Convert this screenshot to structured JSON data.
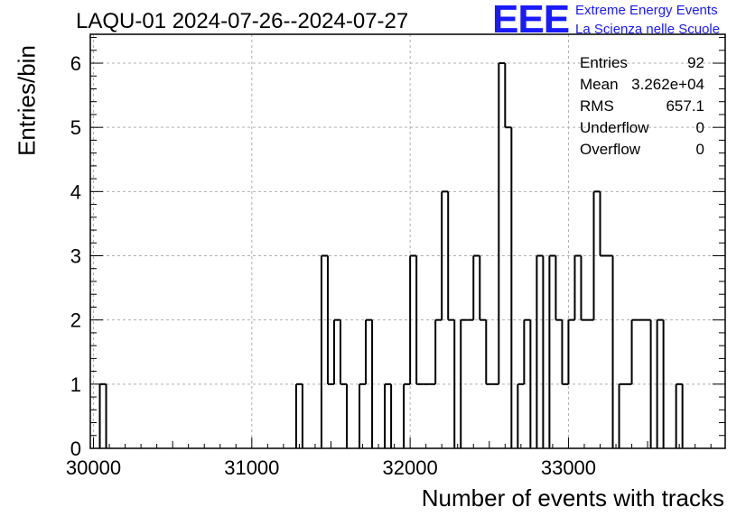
{
  "title": "LAQU-01 2024-07-26--2024-07-27",
  "logo": {
    "mark": "EEE",
    "line1": "Extreme Energy Events",
    "line2": "La Scienza nelle Scuole"
  },
  "stats": [
    {
      "label": "Entries",
      "value": "92"
    },
    {
      "label": "Mean",
      "value": "3.262e+04"
    },
    {
      "label": "RMS",
      "value": "657.1"
    },
    {
      "label": "Underflow",
      "value": "0"
    },
    {
      "label": "Overflow",
      "value": "0"
    }
  ],
  "colors": {
    "histogram_line": "#000000",
    "grid": "#b0b0b0",
    "logo": "#1a1aff"
  },
  "chart_data": {
    "type": "histogram",
    "xlabel": "Number of events with tracks",
    "ylabel": "Entries/bin",
    "xlim": [
      29980,
      33990
    ],
    "ylim": [
      0,
      6.45
    ],
    "bin_width": 40,
    "x_ticks": [
      30000,
      31000,
      32000,
      33000
    ],
    "y_ticks": [
      0,
      1,
      2,
      3,
      4,
      5,
      6
    ],
    "grid": true,
    "bins": [
      {
        "x": 30000,
        "y": 0
      },
      {
        "x": 30040,
        "y": 1
      },
      {
        "x": 30080,
        "y": 0
      },
      {
        "x": 31280,
        "y": 1
      },
      {
        "x": 31320,
        "y": 0
      },
      {
        "x": 31440,
        "y": 3
      },
      {
        "x": 31480,
        "y": 1
      },
      {
        "x": 31520,
        "y": 2
      },
      {
        "x": 31560,
        "y": 1
      },
      {
        "x": 31600,
        "y": 0
      },
      {
        "x": 31680,
        "y": 1
      },
      {
        "x": 31720,
        "y": 2
      },
      {
        "x": 31760,
        "y": 0
      },
      {
        "x": 31840,
        "y": 1
      },
      {
        "x": 31880,
        "y": 0
      },
      {
        "x": 31960,
        "y": 1
      },
      {
        "x": 32000,
        "y": 3
      },
      {
        "x": 32040,
        "y": 1
      },
      {
        "x": 32080,
        "y": 1
      },
      {
        "x": 32120,
        "y": 1
      },
      {
        "x": 32160,
        "y": 2
      },
      {
        "x": 32200,
        "y": 4
      },
      {
        "x": 32240,
        "y": 2
      },
      {
        "x": 32280,
        "y": 0
      },
      {
        "x": 32320,
        "y": 2
      },
      {
        "x": 32360,
        "y": 2
      },
      {
        "x": 32400,
        "y": 3
      },
      {
        "x": 32440,
        "y": 2
      },
      {
        "x": 32480,
        "y": 1
      },
      {
        "x": 32520,
        "y": 1
      },
      {
        "x": 32560,
        "y": 6
      },
      {
        "x": 32600,
        "y": 5
      },
      {
        "x": 32640,
        "y": 0
      },
      {
        "x": 32680,
        "y": 1
      },
      {
        "x": 32720,
        "y": 2
      },
      {
        "x": 32760,
        "y": 0
      },
      {
        "x": 32800,
        "y": 3
      },
      {
        "x": 32840,
        "y": 0
      },
      {
        "x": 32880,
        "y": 3
      },
      {
        "x": 32920,
        "y": 2
      },
      {
        "x": 32960,
        "y": 1
      },
      {
        "x": 33000,
        "y": 2
      },
      {
        "x": 33040,
        "y": 3
      },
      {
        "x": 33080,
        "y": 2
      },
      {
        "x": 33120,
        "y": 2
      },
      {
        "x": 33160,
        "y": 4
      },
      {
        "x": 33200,
        "y": 3
      },
      {
        "x": 33240,
        "y": 3
      },
      {
        "x": 33280,
        "y": 0
      },
      {
        "x": 33320,
        "y": 1
      },
      {
        "x": 33360,
        "y": 1
      },
      {
        "x": 33400,
        "y": 2
      },
      {
        "x": 33440,
        "y": 2
      },
      {
        "x": 33480,
        "y": 2
      },
      {
        "x": 33520,
        "y": 0
      },
      {
        "x": 33560,
        "y": 2
      },
      {
        "x": 33600,
        "y": 0
      },
      {
        "x": 33680,
        "y": 1
      },
      {
        "x": 33720,
        "y": 0
      }
    ]
  }
}
